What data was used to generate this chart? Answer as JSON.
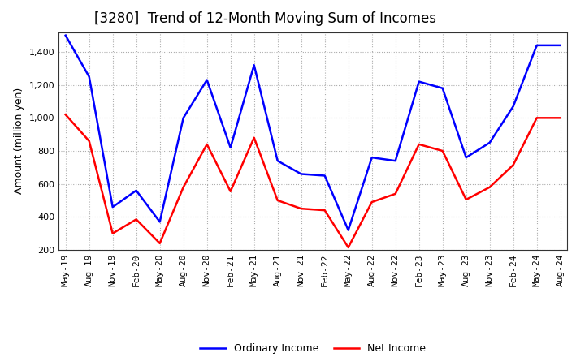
{
  "title": "[3280]  Trend of 12-Month Moving Sum of Incomes",
  "ylabel": "Amount (million yen)",
  "xlabels": [
    "May-19",
    "Aug-19",
    "Nov-19",
    "Feb-20",
    "May-20",
    "Aug-20",
    "Nov-20",
    "Feb-21",
    "May-21",
    "Aug-21",
    "Nov-21",
    "Feb-22",
    "May-22",
    "Aug-22",
    "Nov-22",
    "Feb-23",
    "May-23",
    "Aug-23",
    "Nov-23",
    "Feb-24",
    "May-24",
    "Aug-24"
  ],
  "ordinary_income": [
    1500,
    1250,
    460,
    560,
    370,
    1000,
    1230,
    820,
    1320,
    740,
    660,
    650,
    320,
    760,
    740,
    1220,
    1180,
    760,
    850,
    1070,
    1440,
    1440
  ],
  "net_income": [
    1020,
    860,
    300,
    385,
    240,
    580,
    840,
    555,
    880,
    500,
    450,
    440,
    215,
    490,
    540,
    840,
    800,
    505,
    580,
    715,
    1000,
    1000
  ],
  "ordinary_color": "#0000ff",
  "net_color": "#ff0000",
  "ylim": [
    200,
    1520
  ],
  "yticks": [
    200,
    400,
    600,
    800,
    1000,
    1200,
    1400
  ],
  "background_color": "#ffffff",
  "grid_color": "#999999",
  "title_fontsize": 12,
  "axis_label_fontsize": 9,
  "tick_fontsize": 8,
  "legend_labels": [
    "Ordinary Income",
    "Net Income"
  ],
  "line_width": 1.8
}
